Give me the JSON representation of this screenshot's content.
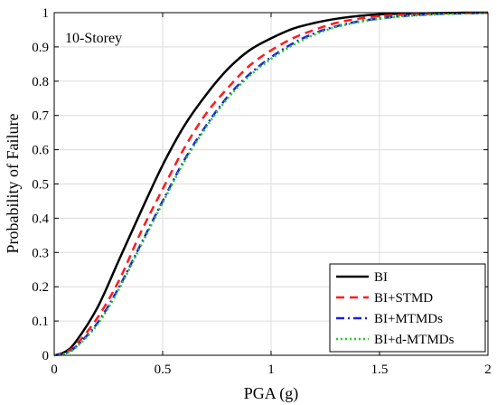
{
  "chart_data": {
    "type": "line",
    "annotation": "10-Storey",
    "xlabel": "PGA (g)",
    "ylabel": "Probability of Failure",
    "xlim": [
      0,
      2
    ],
    "ylim": [
      0,
      1
    ],
    "xticks": [
      0,
      0.5,
      1,
      1.5,
      2
    ],
    "xtick_labels": [
      "0",
      "0.5",
      "1",
      "1.5",
      "2"
    ],
    "yticks": [
      0,
      0.1,
      0.2,
      0.3,
      0.4,
      0.5,
      0.6,
      0.7,
      0.8,
      0.9,
      1
    ],
    "ytick_labels": [
      "0",
      "0.1",
      "0.2",
      "0.3",
      "0.4",
      "0.5",
      "0.6",
      "0.7",
      "0.8",
      "0.9",
      "1"
    ],
    "grid": true,
    "legend_position": "bottom-right",
    "x": [
      0,
      0.05,
      0.1,
      0.2,
      0.3,
      0.4,
      0.5,
      0.6,
      0.7,
      0.8,
      0.9,
      1.0,
      1.1,
      1.2,
      1.3,
      1.4,
      1.5,
      1.6,
      1.7,
      1.8,
      1.9,
      2.0
    ],
    "series": [
      {
        "name": "BI",
        "color": "#000000",
        "dash": "solid",
        "values": [
          0,
          0.01,
          0.04,
          0.14,
          0.28,
          0.42,
          0.555,
          0.67,
          0.76,
          0.835,
          0.89,
          0.925,
          0.953,
          0.97,
          0.982,
          0.99,
          0.995,
          0.997,
          0.998,
          0.999,
          1.0,
          1.0
        ]
      },
      {
        "name": "BI+STMD",
        "color": "#ff1a1a",
        "dash": "dashed",
        "values": [
          0,
          0.008,
          0.03,
          0.11,
          0.22,
          0.36,
          0.485,
          0.605,
          0.705,
          0.78,
          0.845,
          0.89,
          0.925,
          0.95,
          0.97,
          0.982,
          0.99,
          0.994,
          0.996,
          0.998,
          0.999,
          1.0
        ]
      },
      {
        "name": "BI+MTMDs",
        "color": "#1f1fd8",
        "dash": "dashdot",
        "values": [
          0,
          0.006,
          0.025,
          0.095,
          0.2,
          0.325,
          0.45,
          0.57,
          0.67,
          0.755,
          0.82,
          0.87,
          0.91,
          0.94,
          0.96,
          0.974,
          0.983,
          0.99,
          0.994,
          0.997,
          0.998,
          1.0
        ]
      },
      {
        "name": "BI+d-MTMDs",
        "color": "#22cc22",
        "dash": "dotted",
        "values": [
          0,
          0.005,
          0.023,
          0.09,
          0.195,
          0.32,
          0.445,
          0.565,
          0.665,
          0.75,
          0.815,
          0.865,
          0.905,
          0.936,
          0.958,
          0.972,
          0.982,
          0.989,
          0.993,
          0.996,
          0.998,
          1.0
        ]
      }
    ]
  }
}
